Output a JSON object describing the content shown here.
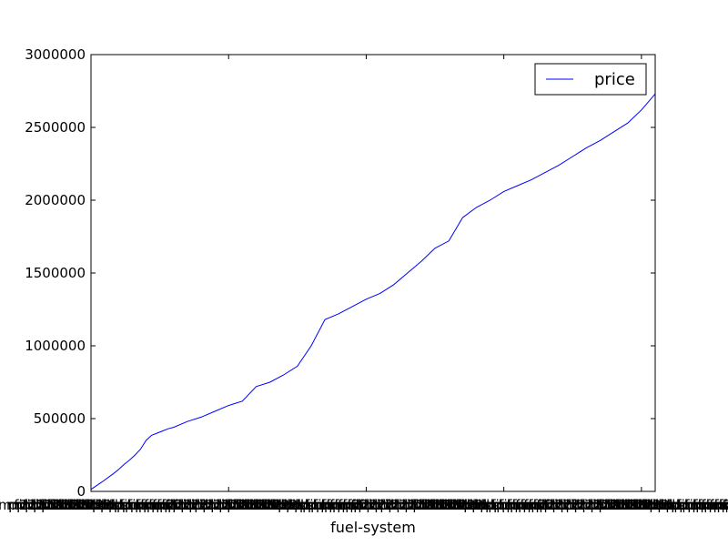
{
  "chart_data": {
    "type": "line",
    "title": "",
    "xlabel": "fuel-system",
    "ylabel": "",
    "ylim": [
      0,
      3000000
    ],
    "yticks": [
      0,
      500000,
      1000000,
      1500000,
      2000000,
      2500000,
      3000000
    ],
    "ytick_labels": [
      "0",
      "500000",
      "1000000",
      "1500000",
      "2000000",
      "2500000",
      "3000000"
    ],
    "xlim": [
      0,
      205
    ],
    "xticks": [
      0,
      50,
      100,
      150,
      200
    ],
    "x_tick_label_text": "mpfi2bbl1bbl2bbl2bblspdimpfimpfimpfi2bbl",
    "x_tick_label_repeat": 4,
    "grid": false,
    "legend_position": "top-right",
    "series": [
      {
        "name": "price",
        "color": "#0000ff",
        "x": [
          0,
          4,
          8,
          10,
          12,
          14,
          16,
          18,
          20,
          22,
          24,
          26,
          28,
          30,
          35,
          40,
          45,
          50,
          55,
          60,
          65,
          70,
          75,
          80,
          85,
          90,
          95,
          100,
          105,
          110,
          115,
          120,
          125,
          130,
          135,
          140,
          145,
          150,
          155,
          160,
          165,
          170,
          175,
          180,
          185,
          190,
          195,
          200,
          205
        ],
        "values": [
          13495,
          65000,
          120000,
          150000,
          185000,
          215000,
          250000,
          290000,
          350000,
          385000,
          400000,
          415000,
          430000,
          440000,
          480000,
          510000,
          550000,
          590000,
          620000,
          720000,
          750000,
          800000,
          860000,
          1000000,
          1180000,
          1220000,
          1270000,
          1320000,
          1360000,
          1420000,
          1500000,
          1580000,
          1670000,
          1720000,
          1880000,
          1950000,
          2000000,
          2060000,
          2100000,
          2140000,
          2190000,
          2240000,
          2300000,
          2360000,
          2410000,
          2470000,
          2530000,
          2620000,
          2730000
        ]
      }
    ]
  }
}
